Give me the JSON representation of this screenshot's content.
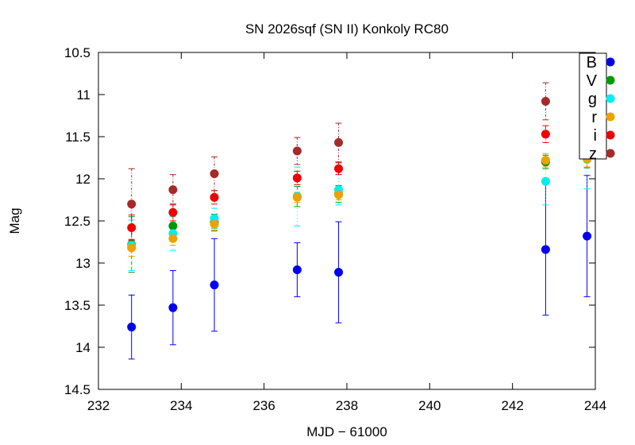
{
  "chart_data": {
    "type": "scatter",
    "title": "SN 2026sqf (SN II) Konkoly RC80",
    "xlabel": "MJD − 61000",
    "ylabel": "Mag",
    "xlim": [
      232,
      244
    ],
    "ylim": [
      10.5,
      14.5
    ],
    "y_inverted": true,
    "grid": false,
    "legend_position": "top-right",
    "x_ticks": [
      "232",
      "234",
      "236",
      "238",
      "240",
      "242",
      "244"
    ],
    "y_ticks": [
      "10.5",
      "11",
      "11.5",
      "12",
      "12.5",
      "13",
      "13.5",
      "14",
      "14.5"
    ],
    "series": [
      {
        "name": "B",
        "color": "#0000ee",
        "x": [
          232.8,
          233.8,
          234.8,
          236.8,
          237.8,
          242.8,
          243.8
        ],
        "y": [
          13.76,
          13.53,
          13.26,
          13.08,
          13.11,
          12.84,
          12.68
        ],
        "err": [
          0.38,
          0.44,
          0.55,
          0.32,
          0.6,
          0.78,
          0.72
        ]
      },
      {
        "name": "V",
        "color": "#009900",
        "x": [
          232.8,
          233.8,
          234.8,
          236.8,
          237.8,
          242.8,
          243.8
        ],
        "y": [
          12.78,
          12.56,
          12.52,
          12.21,
          12.18,
          11.8,
          11.59
        ],
        "err": [
          0.33,
          0.18,
          0.1,
          0.12,
          0.1,
          0.08,
          0.28
        ]
      },
      {
        "name": "g",
        "color": "#00eeee",
        "x": [
          232.8,
          233.8,
          234.8,
          236.8,
          237.8,
          242.8,
          243.8
        ],
        "y": [
          12.79,
          12.65,
          12.47,
          12.21,
          12.13,
          12.03,
          11.77
        ],
        "err": [
          0.3,
          0.2,
          0.12,
          0.35,
          0.18,
          0.28,
          0.35
        ]
      },
      {
        "name": "r",
        "color": "#f0a000",
        "x": [
          232.8,
          233.8,
          234.8,
          236.8,
          237.8,
          242.8,
          243.8
        ],
        "y": [
          12.82,
          12.71,
          12.54,
          12.22,
          12.19,
          11.78,
          11.76
        ],
        "err": [
          0.1,
          0.08,
          0.07,
          0.06,
          0.06,
          0.08,
          0.1
        ]
      },
      {
        "name": "i",
        "color": "#ee0000",
        "x": [
          232.8,
          233.8,
          234.8,
          236.8,
          237.8,
          242.8,
          243.8
        ],
        "y": [
          12.58,
          12.4,
          12.22,
          11.99,
          11.88,
          11.47,
          11.41
        ],
        "err": [
          0.15,
          0.1,
          0.08,
          0.08,
          0.07,
          0.1,
          0.12
        ]
      },
      {
        "name": "z",
        "color": "#a52a2a",
        "x": [
          232.8,
          233.8,
          234.8,
          236.8,
          237.8,
          242.8,
          243.8
        ],
        "y": [
          12.3,
          12.13,
          11.94,
          11.67,
          11.57,
          11.08,
          10.95
        ],
        "err": [
          0.42,
          0.18,
          0.2,
          0.16,
          0.23,
          0.22,
          0.25
        ]
      }
    ]
  }
}
